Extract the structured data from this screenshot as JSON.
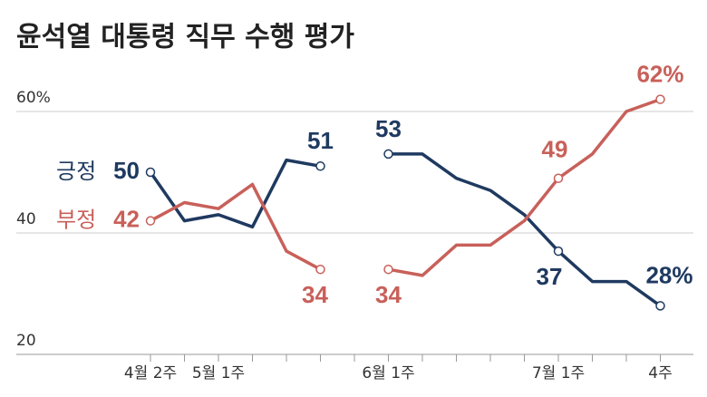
{
  "chart_data": {
    "type": "line",
    "title": "윤석열 대통령 직무 수행 평가",
    "categories": [
      "4월 2주",
      null,
      "5월 1주",
      null,
      null,
      null,
      null,
      "6월 1주",
      null,
      null,
      null,
      null,
      "7월 1주",
      null,
      null,
      "4주"
    ],
    "series": [
      {
        "name": "긍정",
        "color": "#1f3a60",
        "values": [
          50,
          42,
          43,
          41,
          52,
          51,
          null,
          53,
          53,
          49,
          47,
          43,
          37,
          32,
          32,
          28
        ],
        "value_labels": [
          "50",
          null,
          null,
          null,
          null,
          "51",
          null,
          "53",
          null,
          null,
          null,
          null,
          "37",
          null,
          null,
          "28%"
        ]
      },
      {
        "name": "부정",
        "color": "#c8605a",
        "values": [
          42,
          45,
          44,
          48,
          37,
          34,
          null,
          34,
          33,
          38,
          38,
          42,
          49,
          53,
          60,
          62
        ],
        "value_labels": [
          "42",
          null,
          null,
          null,
          null,
          "34",
          null,
          "34",
          null,
          null,
          null,
          null,
          "49",
          null,
          null,
          "62%"
        ]
      }
    ],
    "ylim": [
      20,
      65
    ],
    "yticks": [
      {
        "value": 20,
        "label": "20"
      },
      {
        "value": 40,
        "label": "40"
      },
      {
        "value": 60,
        "label": "60%"
      }
    ],
    "grid": true
  }
}
